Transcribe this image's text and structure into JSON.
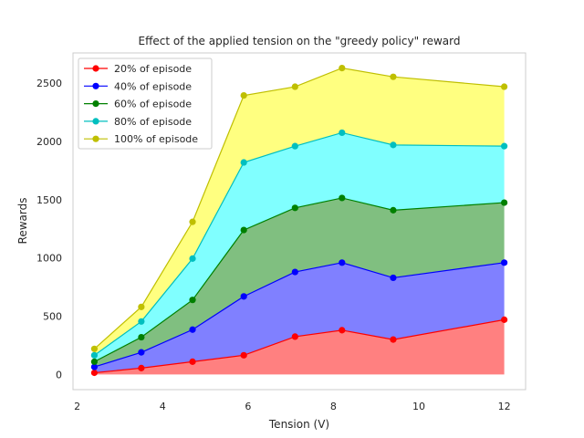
{
  "chart_data": {
    "type": "area",
    "stacked": true,
    "title": "Effect of the applied tension on the \"greedy policy\" reward",
    "xlabel": "Tension (V)",
    "ylabel": "Rewards",
    "xlim": [
      1.9,
      12.5
    ],
    "ylim": [
      -130,
      2760
    ],
    "x_ticks": [
      2,
      4,
      6,
      8,
      10,
      12
    ],
    "y_ticks": [
      0,
      500,
      1000,
      1500,
      2000,
      2500
    ],
    "grid": false,
    "legend_position": "top-left",
    "x": [
      2.4,
      3.5,
      4.7,
      5.9,
      7.1,
      8.2,
      9.4,
      12
    ],
    "series": [
      {
        "name": "20% of episode",
        "color": "#ff0000",
        "fill": "#ff8080",
        "values": [
          15,
          55,
          110,
          165,
          325,
          380,
          300,
          470
        ]
      },
      {
        "name": "40% of episode",
        "color": "#0000ff",
        "fill": "#8080ff",
        "values": [
          65,
          190,
          385,
          670,
          880,
          960,
          830,
          960
        ]
      },
      {
        "name": "60% of episode",
        "color": "#008000",
        "fill": "#80bf80",
        "values": [
          110,
          320,
          640,
          1240,
          1430,
          1515,
          1410,
          1475
        ]
      },
      {
        "name": "80% of episode",
        "color": "#00bfbf",
        "fill": "#80ffff",
        "values": [
          165,
          455,
          995,
          1820,
          1960,
          2075,
          1970,
          1960
        ]
      },
      {
        "name": "100% of episode",
        "color": "#bfbf00",
        "fill": "#ffff80",
        "values": [
          220,
          580,
          1310,
          2395,
          2470,
          2630,
          2555,
          2470
        ]
      }
    ]
  }
}
